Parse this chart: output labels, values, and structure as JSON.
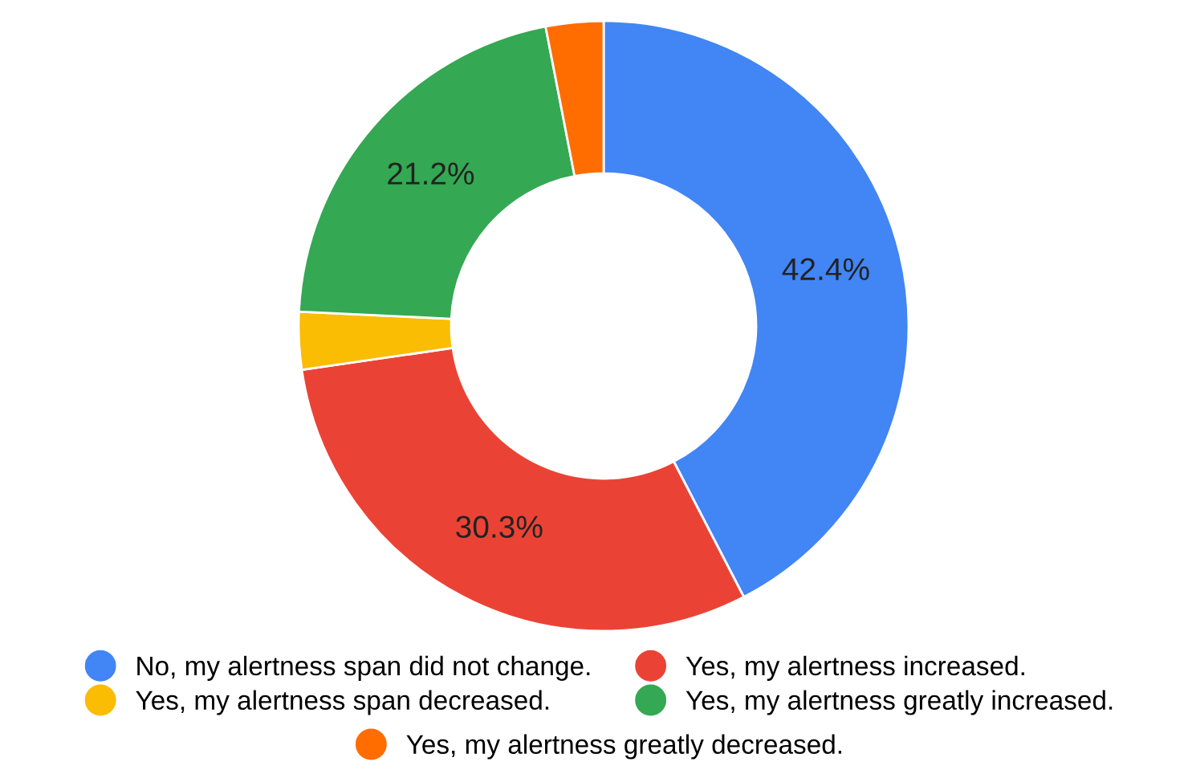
{
  "chart_data": {
    "type": "donut",
    "categories": [
      "No, my alertness span did not change.",
      "Yes, my alertness increased.",
      "Yes, my alertness span decreased.",
      "Yes, my alertness greatly increased.",
      "Yes, my alertness greatly decreased."
    ],
    "values": [
      42.4,
      30.3,
      3.05,
      21.2,
      3.05
    ],
    "colors": [
      "#4285f4",
      "#ea4335",
      "#fbbc04",
      "#34a853",
      "#ff6d01"
    ],
    "value_labels": [
      "42.4%",
      "30.3%",
      null,
      "21.2%",
      null
    ],
    "legend": "bottom"
  }
}
